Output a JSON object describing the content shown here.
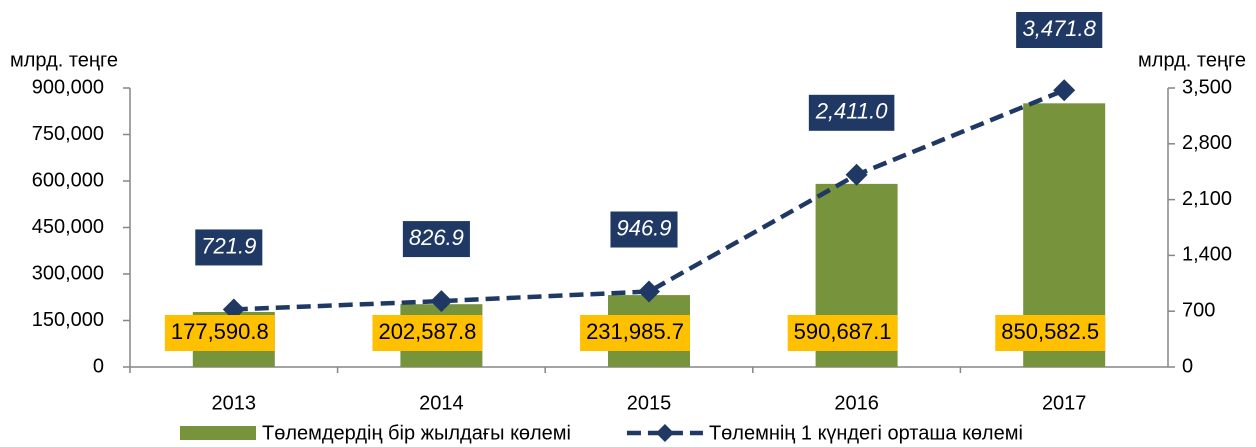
{
  "chart_data": {
    "type": "combo",
    "ylabel": "млрд. теңге",
    "y2label": "млрд. теңге",
    "categories": [
      "2013",
      "2014",
      "2015",
      "2016",
      "2017"
    ],
    "series": [
      {
        "name": "Төлемдердің бір жылдағы көлемі",
        "type": "bar",
        "color": "#77933c",
        "values": [
          177590.8,
          202587.8,
          231985.7,
          590687.1,
          850582.5
        ],
        "value_labels": [
          "177,590.8",
          "202,587.8",
          "231,985.7",
          "590,687.1",
          "850,582.5"
        ]
      },
      {
        "name": "Төлемнің 1 күндегі орташа көлемі",
        "type": "line",
        "color": "#1f3864",
        "axis": "y2",
        "values": [
          721.9,
          826.9,
          946.9,
          2411.0,
          3471.8
        ],
        "value_labels": [
          "721.9",
          "826.9",
          "946.9",
          "2,411.0",
          "3,471.8"
        ]
      }
    ],
    "ylim": [
      0,
      900000
    ],
    "yticks": [
      0,
      {
        "value": 150000,
        "label": "150,000"
      },
      {
        "value": 300000,
        "label": "300,000"
      },
      {
        "value": 450000,
        "label": "450,000"
      },
      {
        "value": 600000,
        "label": "600,000"
      },
      {
        "value": 750000,
        "label": "750,000"
      },
      {
        "value": 900000,
        "label": "900,000"
      }
    ],
    "y2lim": [
      0,
      3500
    ],
    "y2ticks": [
      0,
      700,
      {
        "value": 1400,
        "label": "1,400"
      },
      {
        "value": 2100,
        "label": "2,100"
      },
      {
        "value": 2800,
        "label": "2,800"
      },
      {
        "value": 3500,
        "label": "3,500"
      }
    ]
  }
}
